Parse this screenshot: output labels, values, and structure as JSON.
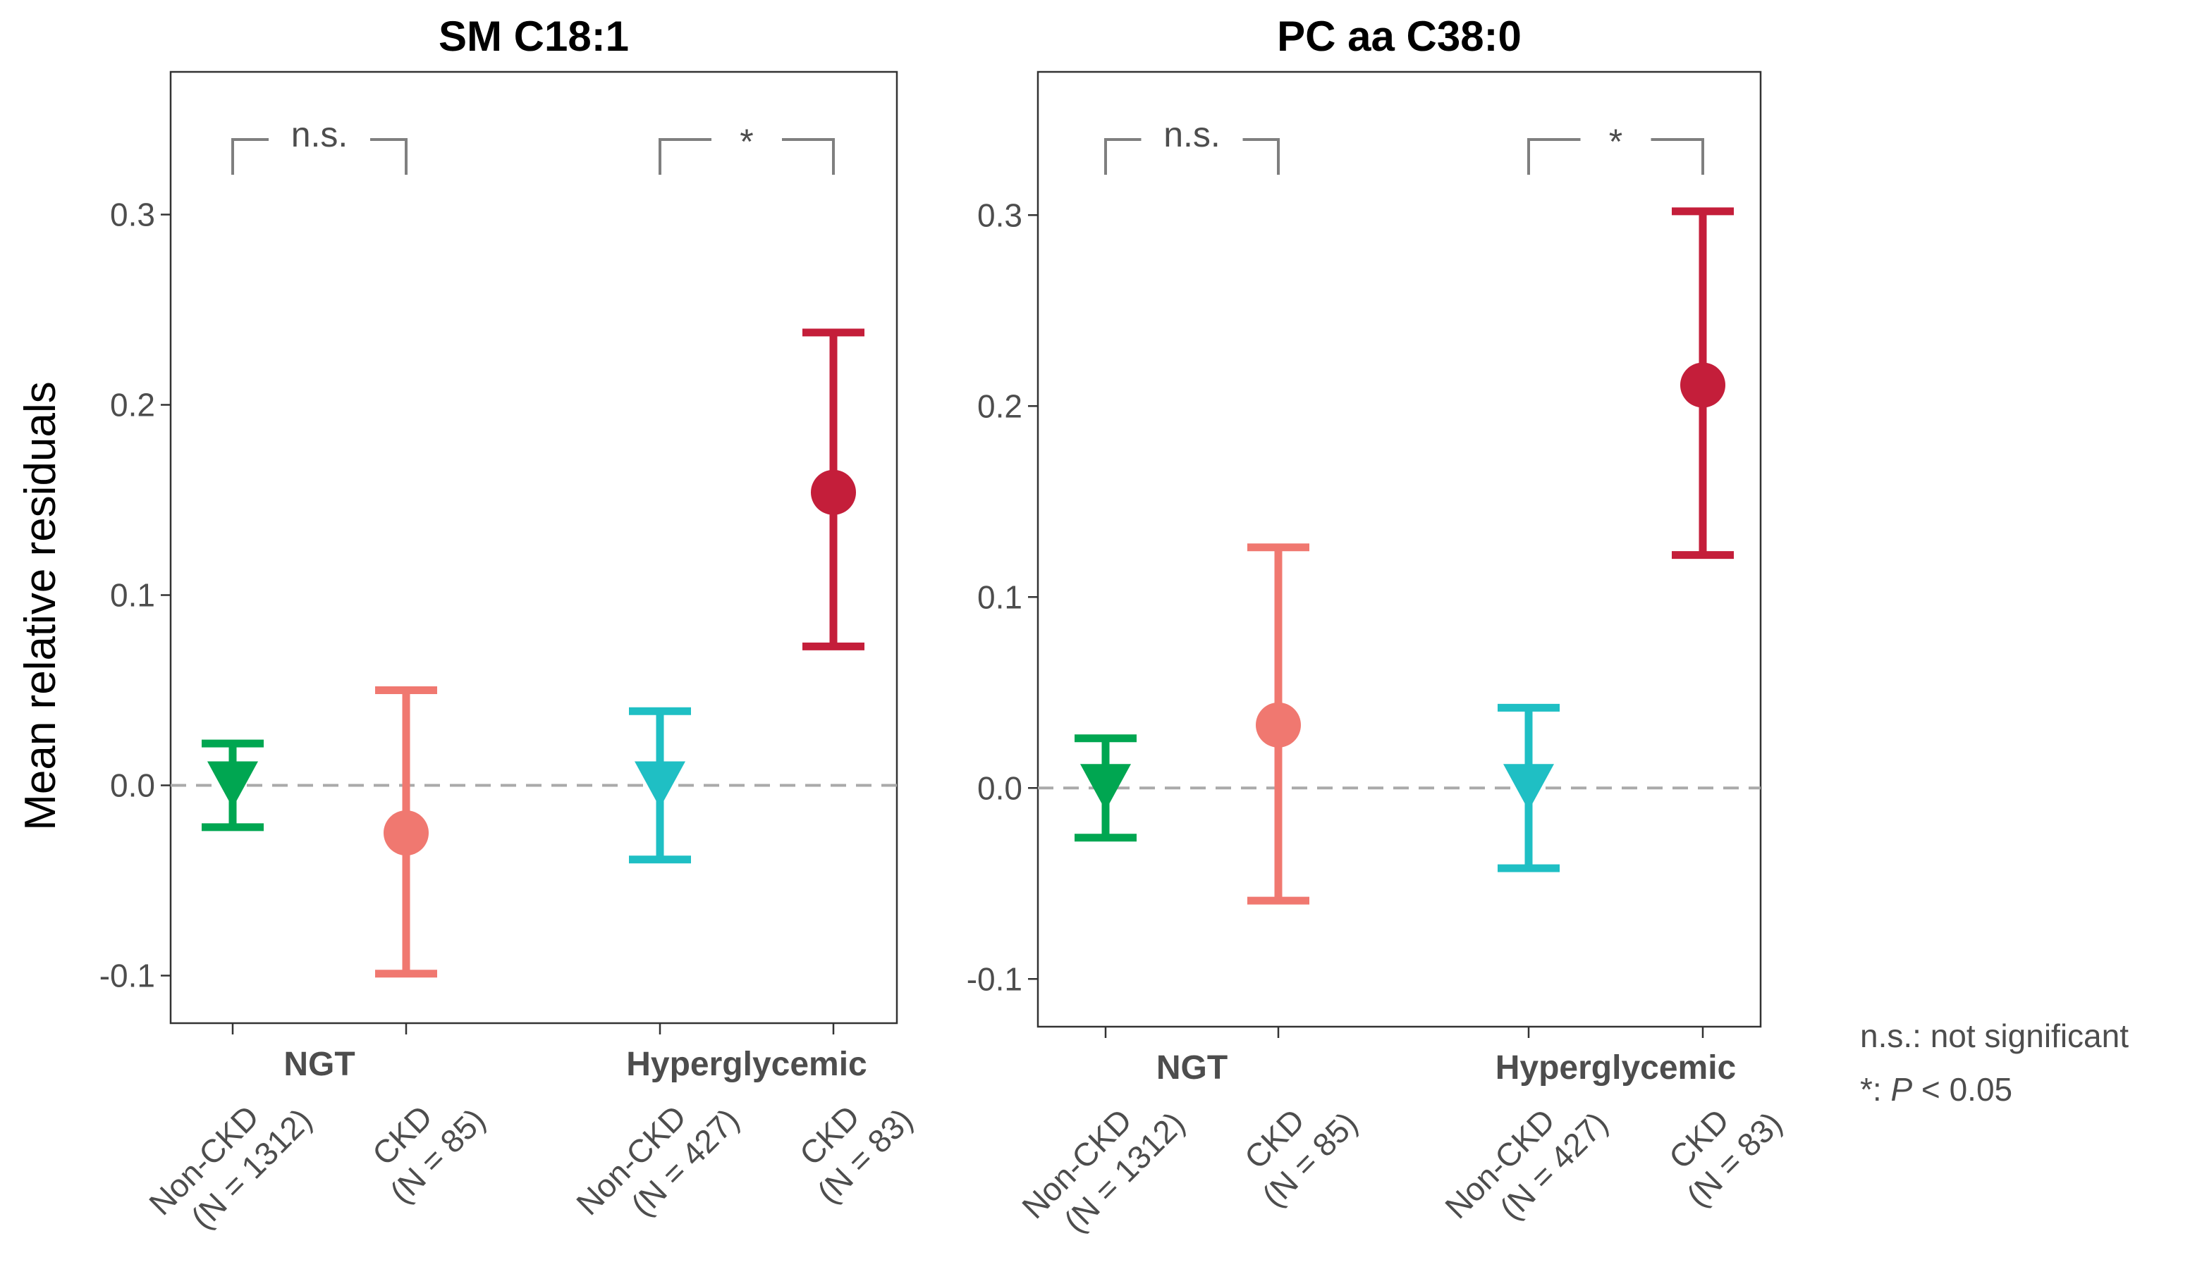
{
  "chart_data": [
    {
      "type": "scatter",
      "title": "SM C18:1",
      "ylabel": "Mean relative residuals",
      "ylim": [
        -0.125,
        0.375
      ],
      "yticks": [
        -0.1,
        0.0,
        0.1,
        0.2,
        0.3
      ],
      "ytick_labels": [
        "-0.1",
        "0.0",
        "0.1",
        "0.2",
        "0.3"
      ],
      "reference_line": 0.0,
      "groups": [
        {
          "label": "NGT",
          "categories": [
            0,
            1
          ]
        },
        {
          "label": "Hyperglycemic",
          "categories": [
            2,
            3
          ]
        }
      ],
      "categories": [
        {
          "label": "Non-CKD",
          "n_label": "(N = 1312)",
          "mean": 0.0,
          "lower": -0.022,
          "upper": 0.022,
          "marker": "triangle-down",
          "color": "#00A651"
        },
        {
          "label": "CKD",
          "n_label": "(N = 85)",
          "mean": -0.025,
          "lower": -0.099,
          "upper": 0.05,
          "marker": "circle",
          "color": "#F07870"
        },
        {
          "label": "Non-CKD",
          "n_label": "(N = 427)",
          "mean": 0.0,
          "lower": -0.039,
          "upper": 0.039,
          "marker": "triangle-down",
          "color": "#1FBFC4"
        },
        {
          "label": "CKD",
          "n_label": "(N = 83)",
          "mean": 0.154,
          "lower": 0.073,
          "upper": 0.238,
          "marker": "circle",
          "color": "#C41E3A"
        }
      ],
      "significance": [
        {
          "from": 0,
          "to": 1,
          "label": "n.s."
        },
        {
          "from": 2,
          "to": 3,
          "label": "*"
        }
      ]
    },
    {
      "type": "scatter",
      "title": "PC aa C38:0",
      "ylim": [
        -0.125,
        0.375
      ],
      "yticks": [
        -0.1,
        0.0,
        0.1,
        0.2,
        0.3
      ],
      "ytick_labels": [
        "-0.1",
        "0.0",
        "0.1",
        "0.2",
        "0.3"
      ],
      "reference_line": 0.0,
      "groups": [
        {
          "label": "NGT",
          "categories": [
            0,
            1
          ]
        },
        {
          "label": "Hyperglycemic",
          "categories": [
            2,
            3
          ]
        }
      ],
      "categories": [
        {
          "label": "Non-CKD",
          "n_label": "(N = 1312)",
          "mean": 0.0,
          "lower": -0.026,
          "upper": 0.026,
          "marker": "triangle-down",
          "color": "#00A651"
        },
        {
          "label": "CKD",
          "n_label": "(N = 85)",
          "mean": 0.033,
          "lower": -0.059,
          "upper": 0.126,
          "marker": "circle",
          "color": "#F07870"
        },
        {
          "label": "Non-CKD",
          "n_label": "(N = 427)",
          "mean": 0.0,
          "lower": -0.042,
          "upper": 0.042,
          "marker": "triangle-down",
          "color": "#1FBFC4"
        },
        {
          "label": "CKD",
          "n_label": "(N = 83)",
          "mean": 0.211,
          "lower": 0.122,
          "upper": 0.302,
          "marker": "circle",
          "color": "#C41E3A"
        }
      ],
      "significance": [
        {
          "from": 0,
          "to": 1,
          "label": "n.s."
        },
        {
          "from": 2,
          "to": 3,
          "label": "*"
        }
      ]
    }
  ],
  "legend_note": {
    "line1": "n.s.: not significant",
    "line2_prefix": "*: ",
    "line2_italic": "P",
    "line2_suffix": " < 0.05"
  },
  "colors": {
    "axis": "#333333",
    "bracket": "#7f7f7f",
    "refline": "#aaaaaa"
  }
}
